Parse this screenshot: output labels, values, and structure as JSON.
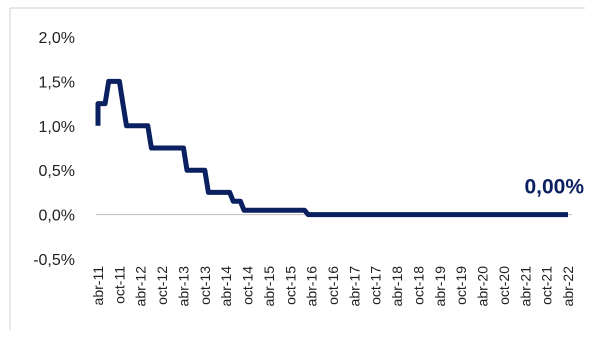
{
  "chart_data": {
    "type": "line",
    "title": "",
    "xlabel": "",
    "ylabel": "",
    "ylim": [
      -0.5,
      2.0
    ],
    "y_ticks": [
      "2,0%",
      "1,5%",
      "1,0%",
      "0,5%",
      "0,0%",
      "-0,5%"
    ],
    "y_tick_values": [
      2.0,
      1.5,
      1.0,
      0.5,
      0.0,
      -0.5
    ],
    "x_ticks": [
      "abr-11",
      "oct-11",
      "abr-12",
      "oct-12",
      "abr-13",
      "oct-13",
      "abr-14",
      "oct-14",
      "abr-15",
      "oct-15",
      "abr-16",
      "oct-16",
      "abr-17",
      "oct-17",
      "abr-18",
      "oct-18",
      "abr-19",
      "oct-19",
      "abr-20",
      "oct-20",
      "abr-21",
      "oct-21",
      "abr-22"
    ],
    "x_range_months": [
      "2011-04",
      "2022-04"
    ],
    "grid": false,
    "line_color": "#0a2060",
    "end_label": "0,00%",
    "series": [
      {
        "points": [
          [
            "2011-04",
            1.0
          ],
          [
            "2011-04",
            1.25
          ],
          [
            "2011-05",
            1.25
          ],
          [
            "2011-06",
            1.25
          ],
          [
            "2011-07",
            1.5
          ],
          [
            "2011-10",
            1.5
          ],
          [
            "2011-11",
            1.25
          ],
          [
            "2011-12",
            1.0
          ],
          [
            "2012-06",
            1.0
          ],
          [
            "2012-07",
            0.75
          ],
          [
            "2013-04",
            0.75
          ],
          [
            "2013-05",
            0.5
          ],
          [
            "2013-10",
            0.5
          ],
          [
            "2013-11",
            0.25
          ],
          [
            "2014-05",
            0.25
          ],
          [
            "2014-06",
            0.15
          ],
          [
            "2014-08",
            0.15
          ],
          [
            "2014-09",
            0.05
          ],
          [
            "2016-02",
            0.05
          ],
          [
            "2016-03",
            0.0
          ],
          [
            "2022-04",
            0.0
          ]
        ]
      }
    ]
  }
}
